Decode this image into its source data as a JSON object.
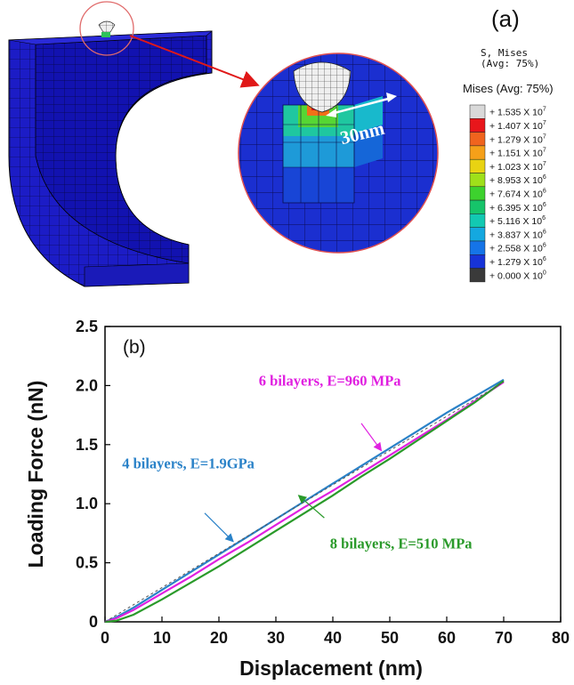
{
  "panel_a": {
    "label": "(a)",
    "header_line1": "S, Mises",
    "header_line2": "(Avg: 75%)",
    "legend_title": "Mises (Avg: 75%)",
    "zoom_annotation": "30nm",
    "legend": [
      {
        "label": "+ 1.535 X 10",
        "exp": "7",
        "color": "#d9d9d9"
      },
      {
        "label": "+ 1.407 X 10",
        "exp": "7",
        "color": "#e8161b"
      },
      {
        "label": "+ 1.279 X 10",
        "exp": "7",
        "color": "#f0641e"
      },
      {
        "label": "+ 1.151 X 10",
        "exp": "7",
        "color": "#f5a019"
      },
      {
        "label": "+ 1.023 X 10",
        "exp": "7",
        "color": "#e9d312"
      },
      {
        "label": "+ 8.953 X 10",
        "exp": "6",
        "color": "#9fe01a"
      },
      {
        "label": "+ 7.674 X 10",
        "exp": "6",
        "color": "#3dd22e"
      },
      {
        "label": "+ 6.395 X 10",
        "exp": "6",
        "color": "#16c46a"
      },
      {
        "label": "+ 5.116 X 10",
        "exp": "6",
        "color": "#12c9b2"
      },
      {
        "label": "+ 3.837 X 10",
        "exp": "6",
        "color": "#14a8e0"
      },
      {
        "label": "+ 2.558 X 10",
        "exp": "6",
        "color": "#1574e8"
      },
      {
        "label": "+ 1.279 X 10",
        "exp": "6",
        "color": "#1733d8"
      },
      {
        "label": "+ 0.000 X 10",
        "exp": "0",
        "color": "#3a3a3a"
      }
    ]
  },
  "chart_data": {
    "type": "line",
    "panel_label": "(b)",
    "xlabel": "Displacement (nm)",
    "ylabel": "Loading Force (nN)",
    "xlim": [
      0,
      80
    ],
    "ylim": [
      0,
      2.5
    ],
    "xticks": [
      0,
      10,
      20,
      30,
      40,
      50,
      60,
      70,
      80
    ],
    "yticks": [
      0,
      0.5,
      1.0,
      1.5,
      2.0,
      2.5
    ],
    "ytick_labels": [
      "0",
      "0.5",
      "1.0",
      "1.5",
      "2.0",
      "2.5"
    ],
    "grid": false,
    "series": [
      {
        "name": "4 bilayers, E=1.9GPa",
        "color": "#2a82c8",
        "x": [
          0,
          2,
          5,
          10,
          15,
          20,
          25,
          30,
          35,
          40,
          45,
          50,
          55,
          60,
          65,
          70
        ],
        "y": [
          0,
          0.04,
          0.12,
          0.27,
          0.42,
          0.57,
          0.72,
          0.87,
          1.02,
          1.17,
          1.32,
          1.47,
          1.62,
          1.77,
          1.91,
          2.05
        ]
      },
      {
        "name": "6 bilayers, E=960 MPa",
        "color": "#e020e0",
        "x": [
          0,
          2,
          5,
          10,
          15,
          20,
          25,
          30,
          35,
          40,
          45,
          50,
          55,
          60,
          65,
          70
        ],
        "y": [
          0,
          0.03,
          0.1,
          0.24,
          0.38,
          0.53,
          0.67,
          0.82,
          0.97,
          1.11,
          1.26,
          1.41,
          1.56,
          1.71,
          1.87,
          2.03
        ]
      },
      {
        "name": "8 bilayers, E=510 MPa",
        "color": "#2a9a2a",
        "x": [
          0,
          2,
          5,
          10,
          15,
          20,
          25,
          30,
          35,
          40,
          45,
          50,
          55,
          60,
          65,
          70
        ],
        "y": [
          0,
          0.01,
          0.06,
          0.19,
          0.33,
          0.47,
          0.62,
          0.77,
          0.92,
          1.07,
          1.23,
          1.38,
          1.54,
          1.7,
          1.86,
          2.04
        ]
      },
      {
        "name": "",
        "color": "#555555",
        "dashed": true,
        "x": [
          0,
          70
        ],
        "y": [
          0,
          2.03
        ]
      }
    ],
    "annotations": [
      {
        "text": "6 bilayers, E=960 MPa",
        "color": "#e020e0",
        "x": 27,
        "y": 2.0,
        "arrow_from": [
          45,
          1.68
        ],
        "arrow_to": [
          48.5,
          1.45
        ]
      },
      {
        "text": "4 bilayers, E=1.9GPa",
        "color": "#2a82c8",
        "x": 3,
        "y": 1.3,
        "arrow_from": [
          17.5,
          0.92
        ],
        "arrow_to": [
          22.5,
          0.68
        ]
      },
      {
        "text": "8 bilayers, E=510 MPa",
        "color": "#2a9a2a",
        "x": 39.5,
        "y": 0.62,
        "arrow_from": [
          38.5,
          0.88
        ],
        "arrow_to": [
          34,
          1.07
        ]
      }
    ]
  }
}
